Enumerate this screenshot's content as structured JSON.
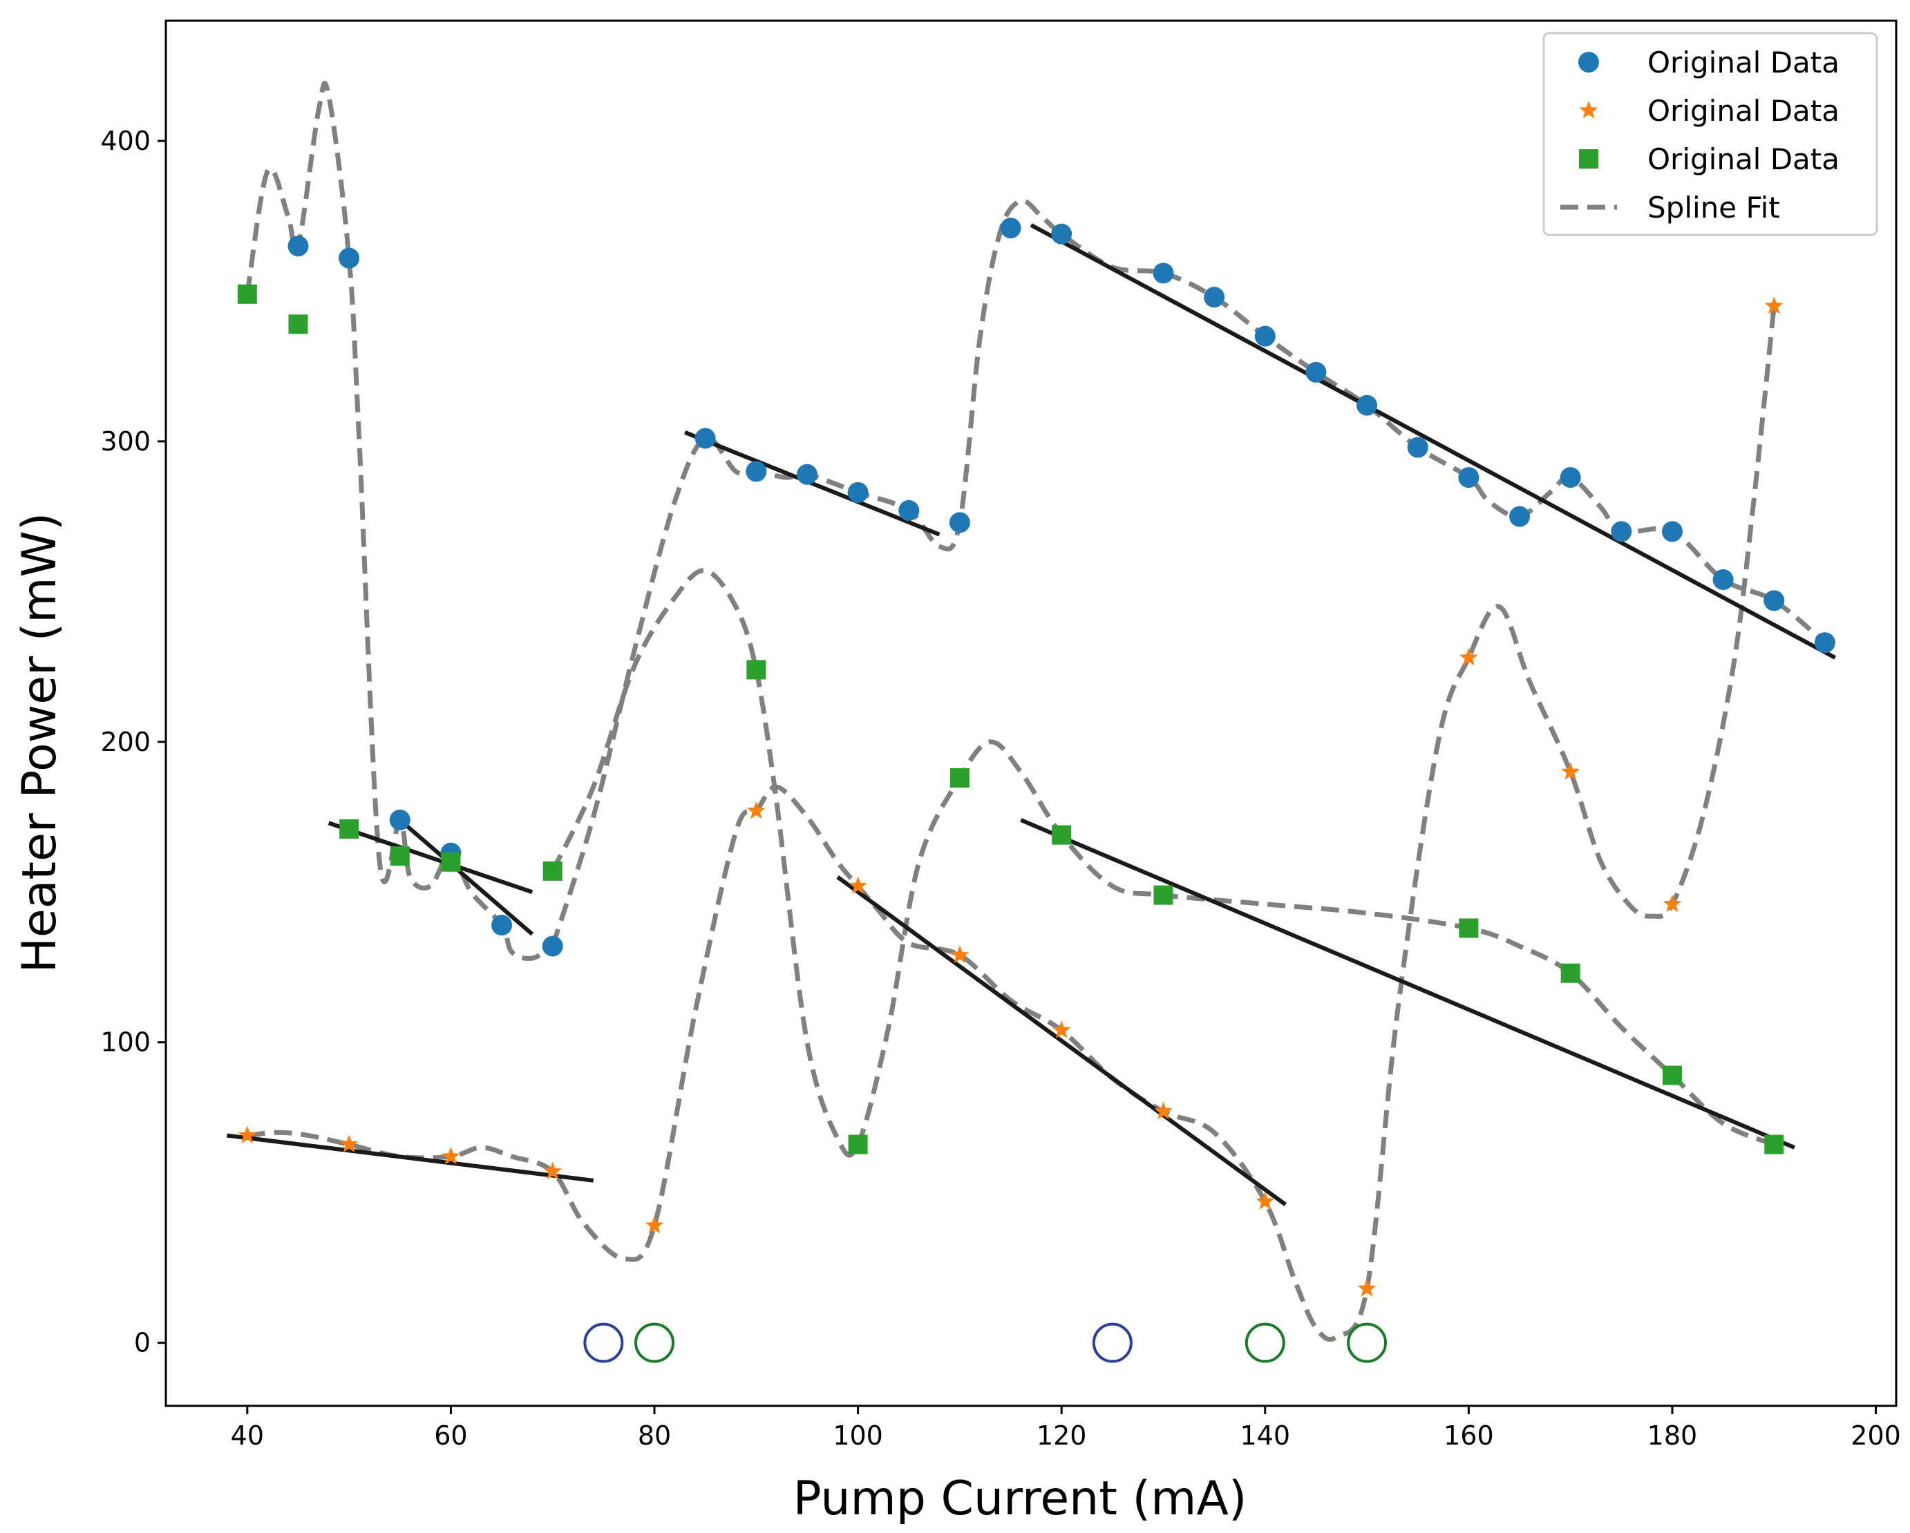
{
  "chart_data": {
    "type": "scatter",
    "title": "",
    "xlabel": "Pump Current (mA)",
    "ylabel": "Heater Power (mW)",
    "xlim": [
      32,
      202
    ],
    "ylim": [
      -21,
      440
    ],
    "xticks": [
      40,
      60,
      80,
      100,
      120,
      140,
      160,
      180,
      200
    ],
    "yticks": [
      0,
      100,
      200,
      300,
      400
    ],
    "grid": false,
    "legend_position": "top-right",
    "colors": {
      "blue": "#1f77b4",
      "orange": "#ff7f0e",
      "green": "#2ca02c",
      "spline": "#808080",
      "fit_line": "#1a1a1a",
      "ring_blue": "#2b3f99",
      "ring_green": "#1a7a2a"
    },
    "series": [
      {
        "name": "Original Data",
        "marker": "circle",
        "color": "#1f77b4",
        "x": [
          45,
          50,
          55,
          60,
          65,
          70,
          85,
          90,
          95,
          100,
          105,
          110,
          115,
          120,
          130,
          135,
          140,
          145,
          150,
          155,
          160,
          165,
          170,
          175,
          180,
          185,
          190,
          195
        ],
        "y": [
          365,
          361,
          174,
          163,
          139,
          132,
          301,
          290,
          289,
          283,
          277,
          273,
          371,
          369,
          356,
          348,
          335,
          323,
          312,
          298,
          288,
          275,
          288,
          270,
          270,
          254,
          247,
          233
        ]
      },
      {
        "name": "Original Data",
        "marker": "star",
        "color": "#ff7f0e",
        "x": [
          40,
          50,
          60,
          70,
          80,
          90,
          100,
          110,
          120,
          130,
          140,
          150,
          160,
          170,
          180,
          190
        ],
        "y": [
          69,
          66,
          62,
          57,
          39,
          177,
          152,
          129,
          104,
          77,
          47,
          18,
          228,
          190,
          146,
          345
        ]
      },
      {
        "name": "Original Data",
        "marker": "square",
        "color": "#2ca02c",
        "x": [
          40,
          45,
          50,
          55,
          60,
          70,
          90,
          100,
          110,
          120,
          130,
          160,
          170,
          180,
          190
        ],
        "y": [
          349,
          339,
          171,
          162,
          160,
          157,
          224,
          66,
          188,
          169,
          149,
          138,
          123,
          89,
          66
        ]
      }
    ],
    "spline_fit": {
      "name": "Spline Fit",
      "style": "dashed",
      "color": "#808080",
      "curves": [
        {
          "x": [
            40,
            42,
            44,
            45,
            47,
            48,
            50,
            51,
            53,
            55,
            56,
            58,
            60,
            62,
            65,
            66,
            68,
            70
          ],
          "y": [
            349,
            390,
            375,
            365,
            410,
            415,
            361,
            300,
            160,
            174,
            155,
            152,
            163,
            150,
            139,
            130,
            128,
            132
          ]
        },
        {
          "x": [
            70,
            74,
            78,
            82,
            85,
            88,
            90,
            93,
            95,
            100,
            105,
            108,
            110,
            112,
            114,
            116,
            118,
            120,
            125,
            130,
            135,
            140,
            145,
            150,
            155,
            160,
            162,
            165,
            168,
            170,
            173,
            175,
            180,
            185,
            190,
            195
          ],
          "y": [
            132,
            175,
            230,
            280,
            301,
            290,
            290,
            288,
            289,
            283,
            277,
            265,
            273,
            335,
            370,
            380,
            375,
            369,
            358,
            356,
            348,
            335,
            323,
            312,
            298,
            288,
            280,
            275,
            283,
            288,
            278,
            270,
            270,
            254,
            247,
            233
          ]
        },
        {
          "x": [
            40,
            43,
            46,
            50,
            55,
            60,
            63,
            66,
            70,
            73,
            77,
            80,
            84,
            88,
            90,
            92,
            95,
            98,
            100,
            102,
            105,
            110,
            115,
            120,
            125,
            130,
            135,
            140,
            143,
            145,
            147,
            150,
            153,
            157,
            160,
            163,
            166,
            170,
            173,
            176,
            178,
            180,
            183,
            186,
            188,
            190
          ],
          "y": [
            69,
            70,
            69,
            66,
            62,
            62,
            65,
            62,
            57,
            40,
            28,
            39,
            110,
            170,
            177,
            185,
            175,
            160,
            152,
            144,
            133,
            129,
            114,
            104,
            88,
            77,
            70,
            47,
            20,
            5,
            2,
            18,
            110,
            200,
            228,
            245,
            220,
            190,
            160,
            145,
            142,
            146,
            175,
            225,
            280,
            345
          ]
        },
        {
          "x": [
            70,
            74,
            78,
            82,
            85,
            88,
            90,
            92,
            95,
            98,
            100,
            103,
            106,
            110,
            113,
            116,
            120,
            125,
            130,
            140,
            150,
            160,
            165,
            170,
            175,
            180,
            185,
            190
          ],
          "y": [
            157,
            185,
            225,
            248,
            257,
            245,
            224,
            180,
            100,
            68,
            66,
            105,
            160,
            188,
            200,
            190,
            169,
            152,
            149,
            146,
            143,
            138,
            132,
            123,
            105,
            89,
            73,
            66
          ]
        }
      ]
    },
    "fit_lines": [
      {
        "x": [
          38,
          74
        ],
        "y": [
          69,
          54
        ]
      },
      {
        "x": [
          48,
          68
        ],
        "y": [
          173,
          150
        ]
      },
      {
        "x": [
          55,
          68
        ],
        "y": [
          174,
          136
        ]
      },
      {
        "x": [
          83,
          108
        ],
        "y": [
          303,
          269
        ]
      },
      {
        "x": [
          98,
          142
        ],
        "y": [
          155,
          46
        ]
      },
      {
        "x": [
          116,
          192
        ],
        "y": [
          174,
          65
        ]
      },
      {
        "x": [
          117,
          196
        ],
        "y": [
          372,
          228
        ]
      }
    ],
    "zero_markers": [
      {
        "x": 75,
        "y": 0,
        "color": "#2b3f99"
      },
      {
        "x": 80,
        "y": 0,
        "color": "#1a7a2a"
      },
      {
        "x": 125,
        "y": 0,
        "color": "#2b3f99"
      },
      {
        "x": 140,
        "y": 0,
        "color": "#1a7a2a"
      },
      {
        "x": 150,
        "y": 0,
        "color": "#1a7a2a"
      }
    ],
    "legend": [
      {
        "label": "Original Data",
        "marker": "circle",
        "color": "#1f77b4"
      },
      {
        "label": "Original Data",
        "marker": "star",
        "color": "#ff7f0e"
      },
      {
        "label": "Original Data",
        "marker": "square",
        "color": "#2ca02c"
      },
      {
        "label": "Spline Fit",
        "marker": "dash",
        "color": "#808080"
      }
    ]
  }
}
